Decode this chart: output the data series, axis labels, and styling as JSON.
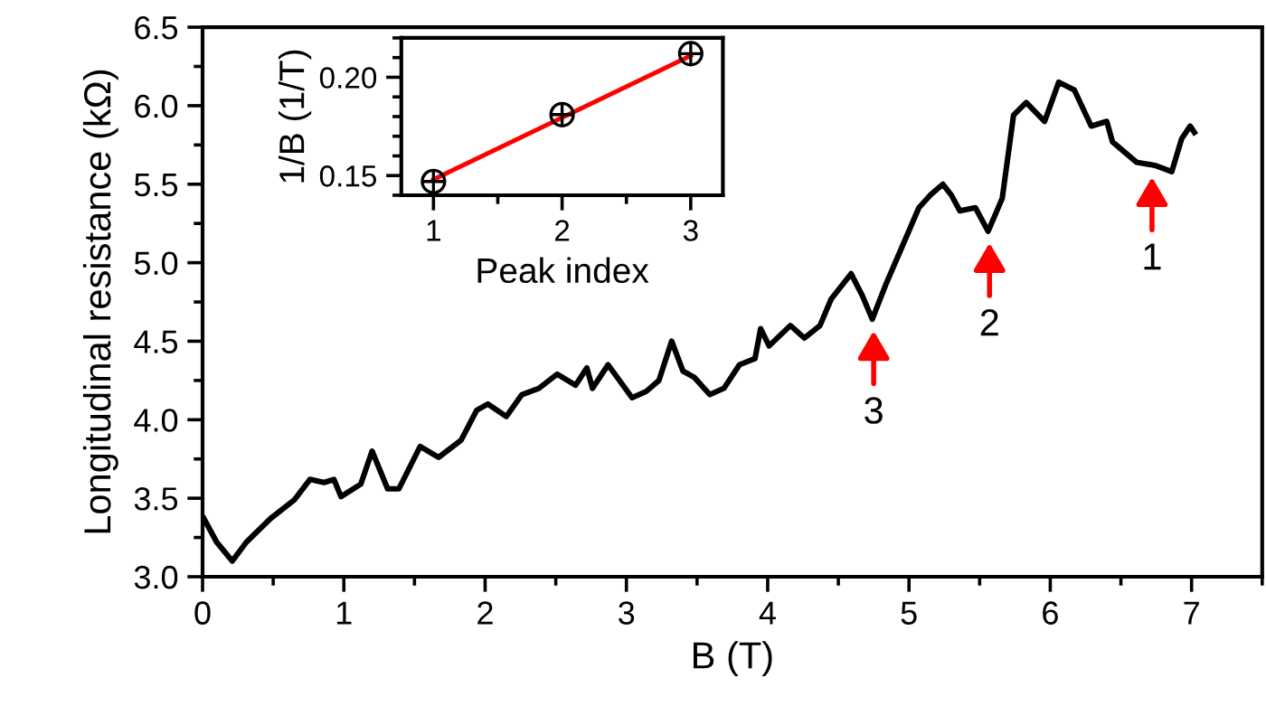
{
  "chart_data": [
    {
      "type": "line",
      "xlabel": "B (T)",
      "ylabel": "Longitudinal resistance (kΩ)",
      "xlim": [
        0,
        7.5
      ],
      "xticks": [
        0,
        1,
        2,
        3,
        4,
        5,
        6,
        7
      ],
      "ylim": [
        3.0,
        6.5
      ],
      "yticks": [
        {
          "value": 3.0,
          "label": "3.0"
        },
        {
          "value": 3.5,
          "label": "3.5"
        },
        {
          "value": 4.0,
          "label": "4.0"
        },
        {
          "value": 4.5,
          "label": "4.5"
        },
        {
          "value": 5.0,
          "label": "5.0"
        },
        {
          "value": 5.5,
          "label": "5.5"
        },
        {
          "value": 6.0,
          "label": "6.0"
        },
        {
          "value": 6.5,
          "label": "6.5"
        }
      ],
      "grid": false,
      "legend": false,
      "marker": "none",
      "line_style": "solid",
      "series": [
        {
          "color": "#000000",
          "x": [
            0.01,
            0.1,
            0.21,
            0.31,
            0.48,
            0.65,
            0.76,
            0.86,
            0.93,
            0.98,
            1.12,
            1.2,
            1.31,
            1.39,
            1.54,
            1.67,
            1.83,
            1.94,
            2.02,
            2.15,
            2.26,
            2.38,
            2.51,
            2.64,
            2.72,
            2.76,
            2.87,
            3.04,
            3.14,
            3.23,
            3.32,
            3.4,
            3.48,
            3.59,
            3.69,
            3.8,
            3.91,
            3.95,
            4.01,
            4.16,
            4.26,
            4.37,
            4.45,
            4.59,
            4.67,
            4.74,
            4.84,
            4.96,
            5.07,
            5.15,
            5.24,
            5.3,
            5.36,
            5.47,
            5.56,
            5.66,
            5.74,
            5.83,
            5.96,
            6.06,
            6.17,
            6.29,
            6.4,
            6.44,
            6.61,
            6.74,
            6.86,
            6.93,
            6.99,
            7.02
          ],
          "values": [
            3.37,
            3.22,
            3.1,
            3.22,
            3.37,
            3.49,
            3.62,
            3.6,
            3.62,
            3.51,
            3.59,
            3.8,
            3.56,
            3.56,
            3.83,
            3.76,
            3.87,
            4.06,
            4.1,
            4.02,
            4.16,
            4.2,
            4.29,
            4.22,
            4.33,
            4.2,
            4.35,
            4.14,
            4.18,
            4.25,
            4.5,
            4.31,
            4.27,
            4.16,
            4.2,
            4.35,
            4.39,
            4.58,
            4.47,
            4.6,
            4.52,
            4.6,
            4.77,
            4.93,
            4.79,
            4.64,
            4.87,
            5.12,
            5.35,
            5.43,
            5.5,
            5.43,
            5.33,
            5.35,
            5.2,
            5.41,
            5.94,
            6.02,
            5.9,
            6.15,
            6.1,
            5.87,
            5.9,
            5.77,
            5.64,
            5.62,
            5.58,
            5.79,
            5.87,
            5.83
          ]
        }
      ],
      "annotations": [
        {
          "text": "3",
          "x": 4.75,
          "y": 4.63
        },
        {
          "text": "2",
          "x": 5.57,
          "y": 5.19
        },
        {
          "text": "1",
          "x": 6.72,
          "y": 5.61
        }
      ]
    },
    {
      "type": "scatter",
      "xlabel": "Peak index",
      "ylabel": "1/B (1/T)",
      "xlim": [
        0.75,
        3.25
      ],
      "xticks": [
        1,
        2,
        3
      ],
      "ylim": [
        0.14,
        0.22
      ],
      "yticks": [
        {
          "value": 0.15,
          "label": "0.15"
        },
        {
          "value": 0.2,
          "label": "0.20"
        }
      ],
      "grid": false,
      "legend": false,
      "series": [
        {
          "color": "#000000",
          "marker": "cross",
          "x": [
            1,
            2,
            3
          ],
          "values": [
            0.147,
            0.181,
            0.212
          ]
        },
        {
          "type": "line",
          "color": "#ff0000",
          "x": [
            1,
            3
          ],
          "values": [
            0.148,
            0.211
          ]
        }
      ]
    }
  ]
}
